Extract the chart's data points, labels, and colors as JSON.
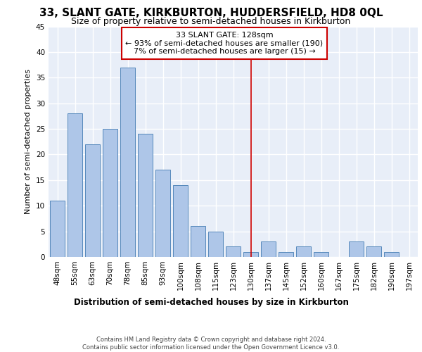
{
  "title": "33, SLANT GATE, KIRKBURTON, HUDDERSFIELD, HD8 0QL",
  "subtitle": "Size of property relative to semi-detached houses in Kirkburton",
  "xlabel": "Distribution of semi-detached houses by size in Kirkburton",
  "ylabel": "Number of semi-detached properties",
  "footer": "Contains HM Land Registry data © Crown copyright and database right 2024.\nContains public sector information licensed under the Open Government Licence v3.0.",
  "categories": [
    "48sqm",
    "55sqm",
    "63sqm",
    "70sqm",
    "78sqm",
    "85sqm",
    "93sqm",
    "100sqm",
    "108sqm",
    "115sqm",
    "123sqm",
    "130sqm",
    "137sqm",
    "145sqm",
    "152sqm",
    "160sqm",
    "167sqm",
    "175sqm",
    "182sqm",
    "190sqm",
    "197sqm"
  ],
  "values": [
    11,
    28,
    22,
    25,
    37,
    24,
    17,
    14,
    6,
    5,
    2,
    1,
    3,
    1,
    2,
    1,
    0,
    3,
    2,
    1,
    0
  ],
  "bar_color": "#aec6e8",
  "bar_edge_color": "#5588bb",
  "annotation_title": "33 SLANT GATE: 128sqm",
  "annotation_line1": "← 93% of semi-detached houses are smaller (190)",
  "annotation_line2": "7% of semi-detached houses are larger (15) →",
  "annotation_box_color": "#cc0000",
  "vline_color": "#cc0000",
  "ylim": [
    0,
    45
  ],
  "background_color": "#e8eef8",
  "grid_color": "#ffffff",
  "title_fontsize": 11,
  "subtitle_fontsize": 9,
  "axis_label_fontsize": 8,
  "tick_fontsize": 7.5,
  "annotation_fontsize": 8
}
